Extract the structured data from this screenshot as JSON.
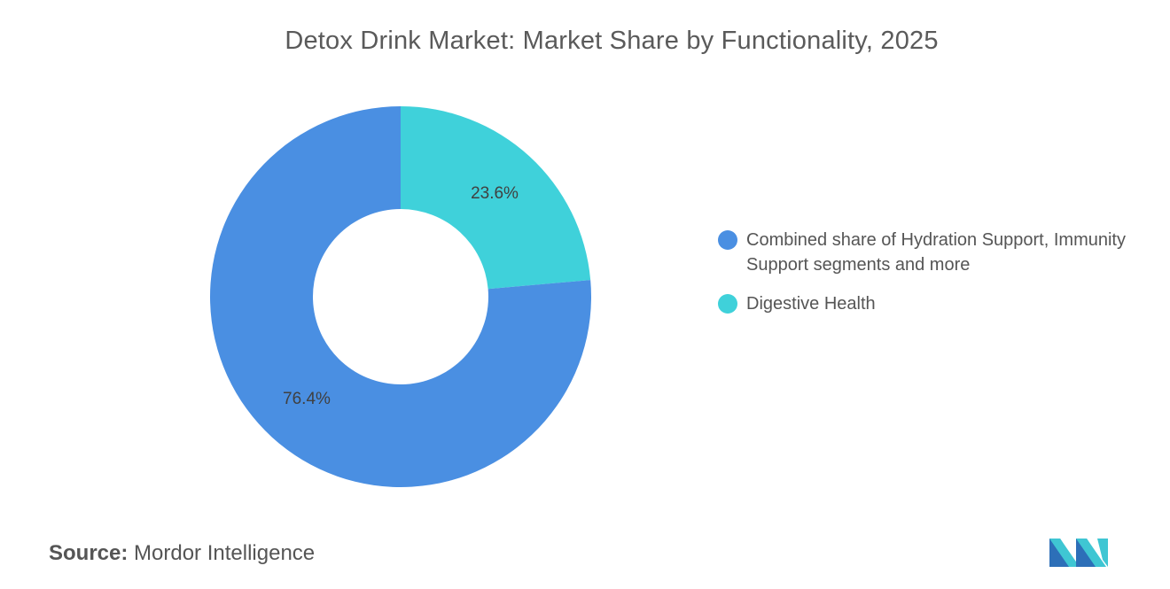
{
  "chart_data": {
    "type": "pie",
    "title": "Detox Drink Market: Market Share by Functionality, 2025",
    "donut": true,
    "slices": [
      {
        "label": "Digestive Health",
        "value": 23.6,
        "display": "23.6%",
        "color": "#3fd1da"
      },
      {
        "label": "Combined share of Hydration Support, Immunity Support segments and more",
        "value": 76.4,
        "display": "76.4%",
        "color": "#4a8fe2"
      }
    ],
    "legend_order": [
      {
        "label": "Combined share of Hydration Support, Immunity Support segments and more",
        "color": "#4a8fe2"
      },
      {
        "label": "Digestive Health",
        "color": "#3fd1da"
      }
    ],
    "legend_position": "right"
  },
  "source": {
    "label": "Source:",
    "text": "Mordor Intelligence"
  },
  "logo": {
    "icon": "mordor-intelligence-logo",
    "colors": [
      "#2d6fb8",
      "#3fc6d3"
    ]
  }
}
